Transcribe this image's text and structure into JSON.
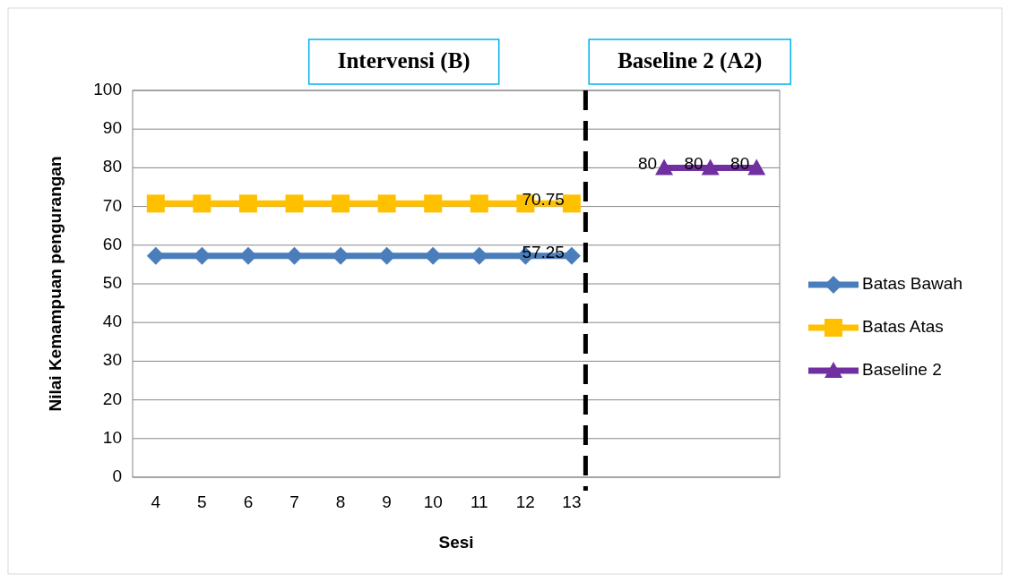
{
  "chart_data": {
    "type": "line",
    "xlabel": "Sesi",
    "ylabel": "Nilai Kemampuan pengurangan",
    "xlim": [
      3.5,
      17.5
    ],
    "xticks": [
      4,
      5,
      6,
      7,
      8,
      9,
      10,
      11,
      12,
      13
    ],
    "ylim": [
      0,
      100
    ],
    "yticks": [
      0,
      10,
      20,
      30,
      40,
      50,
      60,
      70,
      80,
      90,
      100
    ],
    "grid": "y",
    "legend": "right",
    "annotations": [
      "Intervensi (B)",
      "Baseline 2 (A2)"
    ],
    "ref_lines": [
      {
        "axis": "x",
        "value": 13.3,
        "line_style": "dashed",
        "color": "#000000"
      }
    ],
    "series": [
      {
        "name": "Batas Bawah",
        "color": "#4a7ebb",
        "marker": "diamond",
        "x": [
          4,
          5,
          6,
          7,
          8,
          9,
          10,
          11,
          12,
          13
        ],
        "values": [
          57.25,
          57.25,
          57.25,
          57.25,
          57.25,
          57.25,
          57.25,
          57.25,
          57.25,
          57.25
        ],
        "value_labels": [
          null,
          null,
          null,
          null,
          null,
          null,
          null,
          null,
          null,
          "57.25"
        ]
      },
      {
        "name": "Batas Atas",
        "color": "#ffc000",
        "marker": "square",
        "x": [
          4,
          5,
          6,
          7,
          8,
          9,
          10,
          11,
          12,
          13
        ],
        "values": [
          70.75,
          70.75,
          70.75,
          70.75,
          70.75,
          70.75,
          70.75,
          70.75,
          70.75,
          70.75
        ],
        "value_labels": [
          null,
          null,
          null,
          null,
          null,
          null,
          null,
          null,
          null,
          "70.75"
        ]
      },
      {
        "name": "Baseline 2",
        "color": "#7030a0",
        "marker": "triangle",
        "x": [
          15,
          16,
          17
        ],
        "values": [
          80,
          80,
          80
        ],
        "value_labels": [
          "80",
          "80",
          "80"
        ]
      }
    ]
  }
}
